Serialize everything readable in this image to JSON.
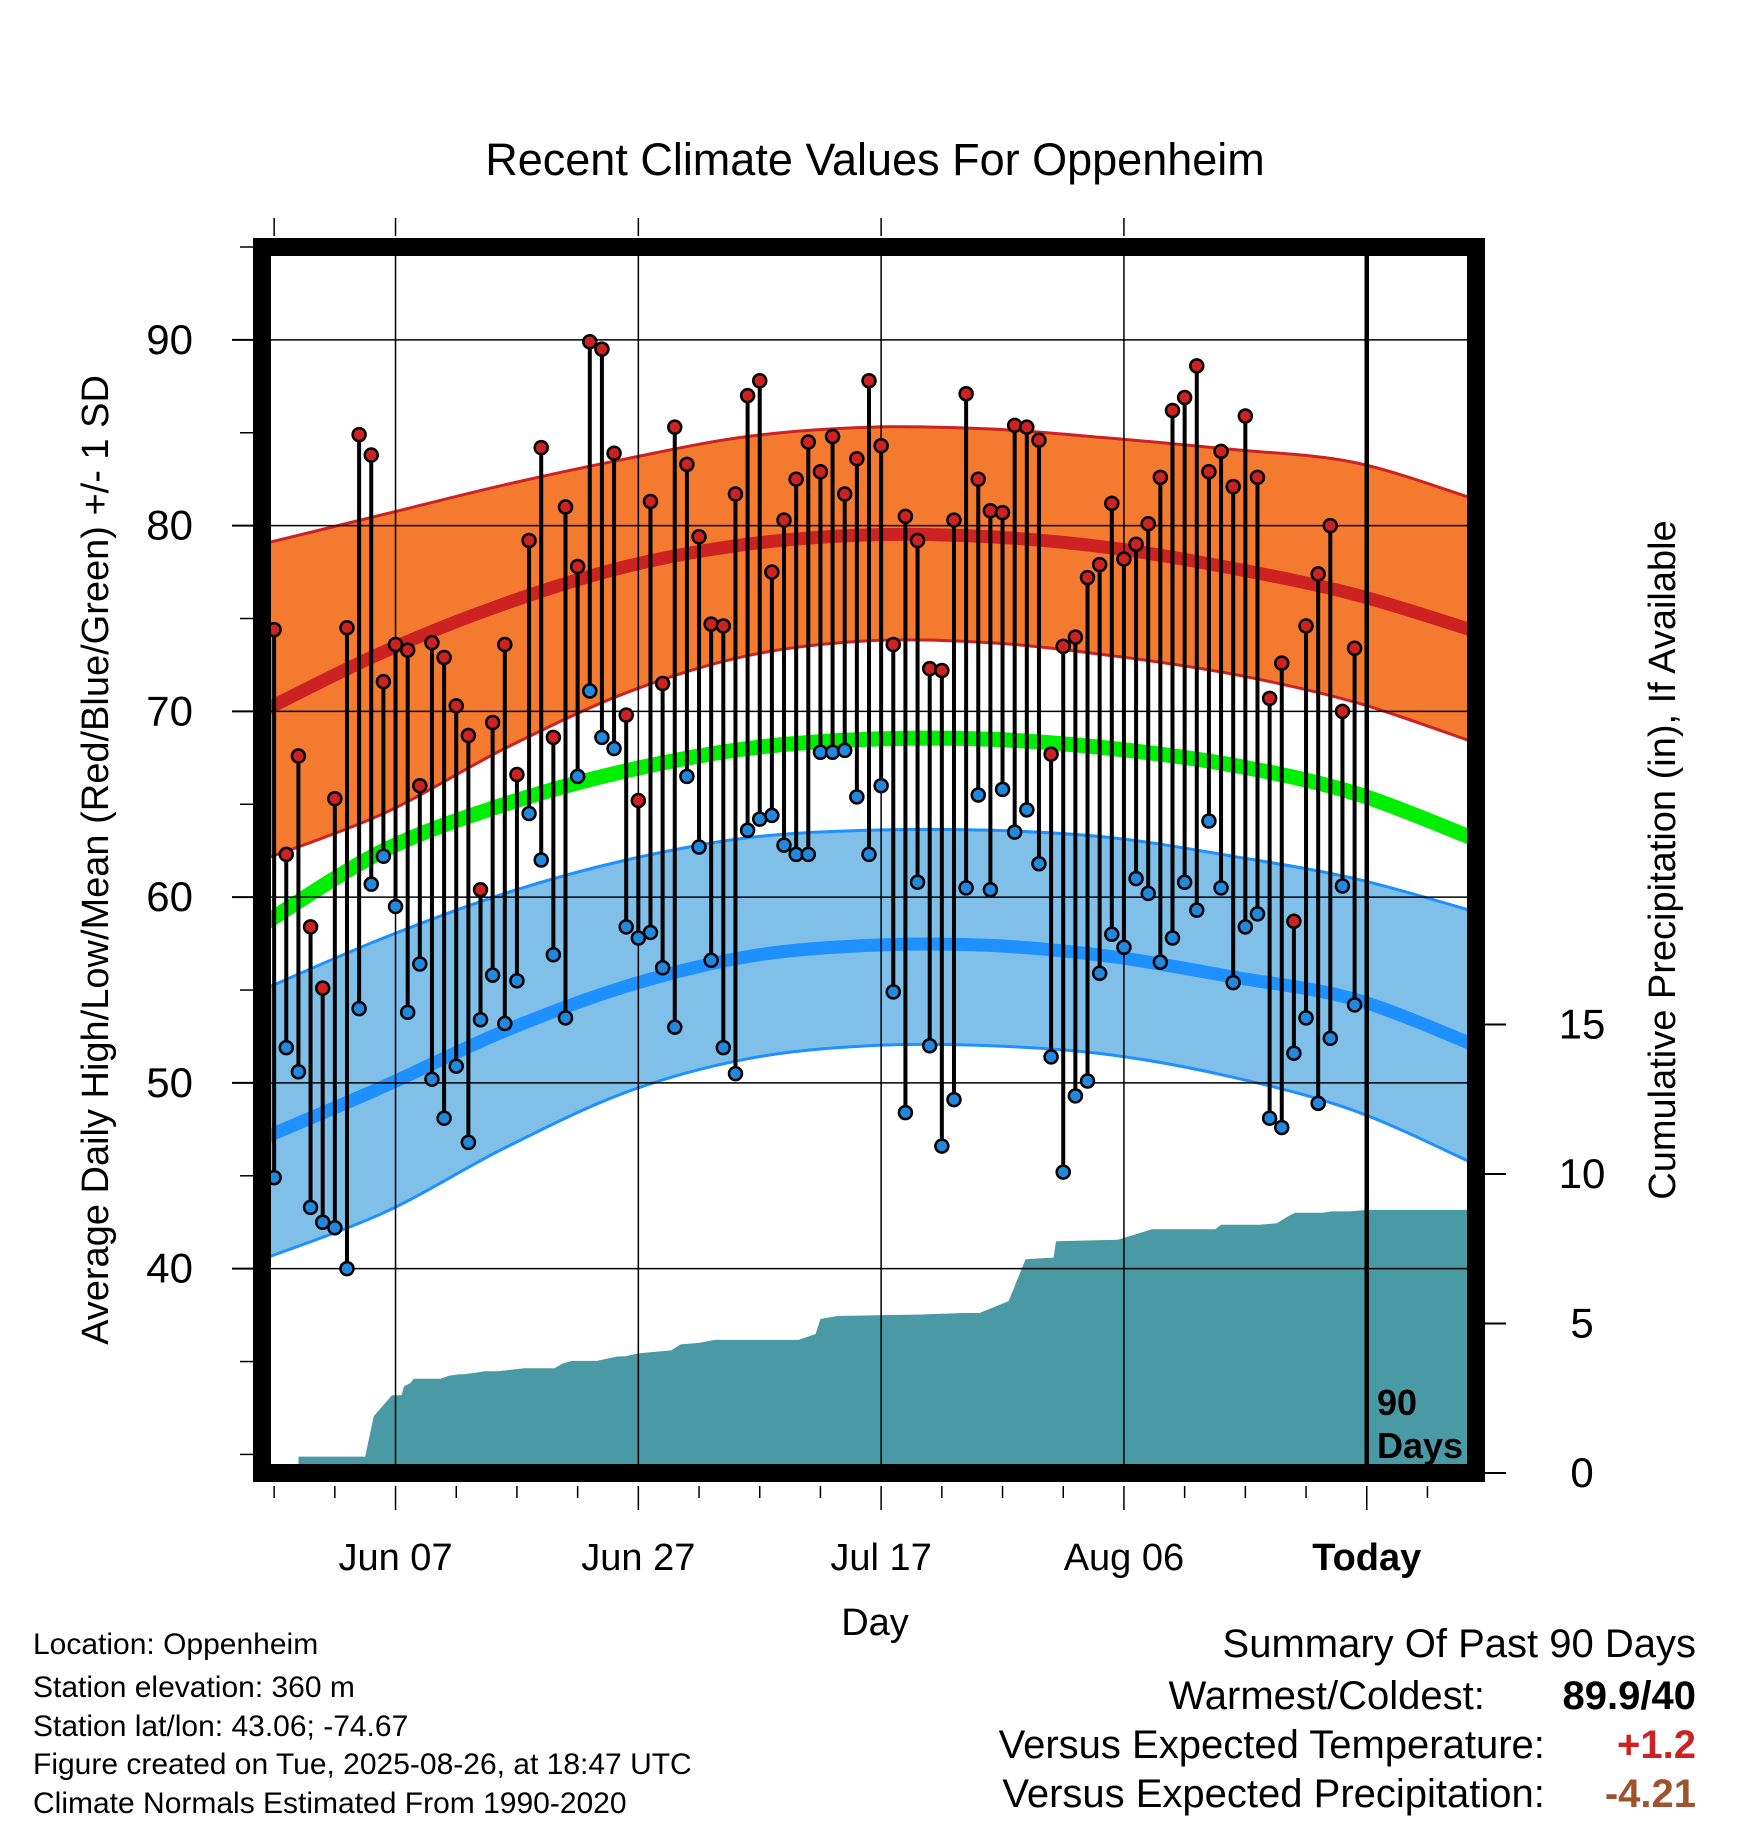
{
  "chart_data": {
    "type": "line",
    "title": "Recent Climate Values For Oppenheim",
    "xlabel": "Day",
    "ylabel": "Average Daily High/Low/Mean (Red/Blue/Green) +/- 1 SD",
    "y2label": "Cumulative Precipitation (in), If Available",
    "x_ticks": [
      {
        "day": 10,
        "label": "Jun 07"
      },
      {
        "day": 30,
        "label": "Jun 27"
      },
      {
        "day": 50,
        "label": "Jul 17"
      },
      {
        "day": 70,
        "label": "Aug 06"
      },
      {
        "day": 90,
        "label": "Today"
      }
    ],
    "xlim": [
      -1,
      99
    ],
    "ylim": [
      29,
      95
    ],
    "y_ticks": [
      40,
      50,
      60,
      70,
      80,
      90
    ],
    "y2lim": [
      0,
      41
    ],
    "y2_ticks": [
      0,
      5,
      10,
      15
    ],
    "today_marker": {
      "day": 90,
      "label_line1": "90",
      "label_line2": "Days"
    },
    "normals": {
      "days": [
        -1,
        9,
        19,
        29,
        39,
        49,
        59,
        69,
        79,
        89,
        99
      ],
      "high_mean": [
        70.0,
        73.2,
        75.8,
        77.8,
        79.0,
        79.5,
        79.4,
        78.8,
        77.7,
        76.3,
        74.3
      ],
      "high_sd_upper": [
        79.0,
        80.6,
        82.2,
        83.6,
        84.8,
        85.3,
        85.2,
        84.7,
        84.1,
        83.4,
        81.4
      ],
      "high_sd_lower": [
        62.0,
        64.5,
        68.0,
        71.0,
        73.0,
        73.8,
        73.7,
        73.0,
        72.0,
        70.5,
        68.3
      ],
      "mean": [
        58.5,
        62.5,
        65.0,
        66.8,
        68.0,
        68.5,
        68.5,
        68.0,
        67.1,
        65.6,
        63.1
      ],
      "low_mean": [
        47.0,
        49.8,
        52.8,
        55.2,
        56.8,
        57.4,
        57.4,
        56.8,
        55.7,
        54.5,
        52.0
      ],
      "low_sd_upper": [
        55.0,
        57.8,
        60.2,
        62.0,
        63.2,
        63.6,
        63.6,
        63.2,
        62.2,
        61.0,
        59.2
      ],
      "low_sd_lower": [
        40.5,
        43.0,
        46.5,
        49.5,
        51.3,
        52.0,
        52.0,
        51.5,
        50.3,
        48.5,
        45.6
      ]
    },
    "series": [
      {
        "name": "High",
        "color": "#cc2222",
        "values": [
          74.4,
          62.3,
          67.6,
          58.4,
          55.1,
          65.3,
          74.5,
          84.9,
          83.8,
          71.6,
          73.6,
          73.3,
          66.0,
          73.7,
          72.9,
          70.3,
          68.7,
          60.4,
          69.4,
          73.6,
          66.6,
          79.2,
          84.2,
          68.6,
          81.0,
          77.8,
          89.9,
          89.5,
          83.9,
          69.8,
          65.2,
          81.3,
          71.5,
          85.3,
          83.3,
          79.4,
          74.7,
          74.6,
          81.7,
          87.0,
          87.8,
          77.5,
          80.3,
          82.5,
          84.5,
          82.9,
          84.8,
          81.7,
          83.6,
          87.8,
          84.3,
          73.6,
          80.5,
          79.2,
          72.3,
          72.2,
          80.3,
          87.1,
          82.5,
          80.8,
          80.7,
          85.4,
          85.3,
          84.6,
          67.7,
          73.5,
          74.0,
          77.2,
          77.9,
          81.2,
          78.2,
          79.0,
          80.1,
          82.6,
          86.2,
          86.9,
          88.6,
          82.9,
          84.0,
          82.1,
          85.9,
          82.6,
          70.7,
          72.6,
          58.7,
          74.6,
          77.4,
          80.0,
          70.0,
          73.4
        ]
      },
      {
        "name": "Low",
        "color": "#2288dd",
        "values": [
          44.9,
          51.9,
          50.6,
          43.3,
          42.5,
          42.2,
          40.0,
          54.0,
          60.7,
          62.2,
          59.5,
          53.8,
          56.4,
          50.2,
          48.1,
          50.9,
          46.8,
          53.4,
          55.8,
          53.2,
          55.5,
          64.5,
          62.0,
          56.9,
          53.5,
          66.5,
          71.1,
          68.6,
          68.0,
          58.4,
          57.8,
          58.1,
          56.2,
          53.0,
          66.5,
          62.7,
          56.6,
          51.9,
          50.5,
          63.6,
          64.2,
          64.4,
          62.8,
          62.3,
          62.3,
          67.8,
          67.8,
          67.9,
          65.4,
          62.3,
          66.0,
          54.9,
          48.4,
          60.8,
          52.0,
          46.6,
          49.1,
          60.5,
          65.5,
          60.4,
          65.8,
          63.5,
          64.7,
          61.8,
          51.4,
          45.2,
          49.3,
          50.1,
          55.9,
          58.0,
          57.3,
          61.0,
          60.2,
          56.5,
          57.8,
          60.8,
          59.3,
          64.1,
          60.5,
          55.4,
          58.4,
          59.1,
          48.1,
          47.6,
          51.6,
          53.5,
          48.9,
          52.4,
          60.6,
          54.2
        ]
      }
    ],
    "precip_cumulative": {
      "days": [
        -1,
        2,
        2.01,
        7.5,
        8.2,
        9.7,
        10.5,
        10.7,
        11.2,
        11.5,
        12.8,
        13.7,
        14.4,
        15.2,
        15.6,
        16.6,
        17.3,
        18.4,
        20.6,
        23.1,
        23.7,
        24.5,
        25.3,
        26.6,
        28.3,
        28.9,
        30.0,
        32.7,
        33.5,
        35.0,
        36.3,
        43.2,
        44.6,
        45.0,
        46.4,
        53.3,
        56.7,
        58.1,
        60.5,
        61.9,
        63.9,
        64.2,
        64.4,
        69.5,
        72.3,
        77.5,
        78.0,
        81.1,
        82.6,
        83.6,
        84.1,
        86.4,
        87.1,
        88.6,
        90.1,
        99
      ],
      "values": [
        0,
        0,
        0.55,
        0.55,
        1.9,
        2.6,
        2.6,
        2.9,
        3.0,
        3.15,
        3.15,
        3.15,
        3.25,
        3.3,
        3.3,
        3.35,
        3.4,
        3.4,
        3.5,
        3.5,
        3.65,
        3.75,
        3.75,
        3.75,
        3.9,
        3.9,
        4.0,
        4.1,
        4.3,
        4.35,
        4.45,
        4.45,
        4.65,
        5.15,
        5.25,
        5.3,
        5.35,
        5.35,
        5.75,
        7.15,
        7.2,
        7.2,
        7.75,
        7.8,
        8.15,
        8.15,
        8.3,
        8.3,
        8.35,
        8.6,
        8.7,
        8.7,
        8.75,
        8.75,
        8.8,
        8.8
      ]
    }
  },
  "info": {
    "location": "Location: Oppenheim",
    "elevation": "Station elevation: 360 m",
    "latlon": "Station lat/lon: 43.06; -74.67",
    "created": "Figure created on Tue, 2025-08-26, at 18:47 UTC",
    "normals_period": "Climate Normals Estimated From 1990-2020"
  },
  "summary": {
    "heading": "Summary Of Past 90 Days",
    "warmest_coldest_label": "Warmest/Coldest:",
    "warmest_coldest_value": "89.9/40",
    "temp_label": "Versus Expected Temperature:",
    "temp_value": "+1.2",
    "temp_color": "#cc2222",
    "precip_label": "Versus Expected Precipitation:",
    "precip_value": "-4.21",
    "precip_color": "#a0522d"
  },
  "colors": {
    "high_band": "#f47a30",
    "high_line": "#cc2222",
    "mean_line": "#00ee00",
    "low_band": "#80c0e8",
    "low_line": "#1e90ff",
    "precip_fill": "#4a9aa5"
  }
}
